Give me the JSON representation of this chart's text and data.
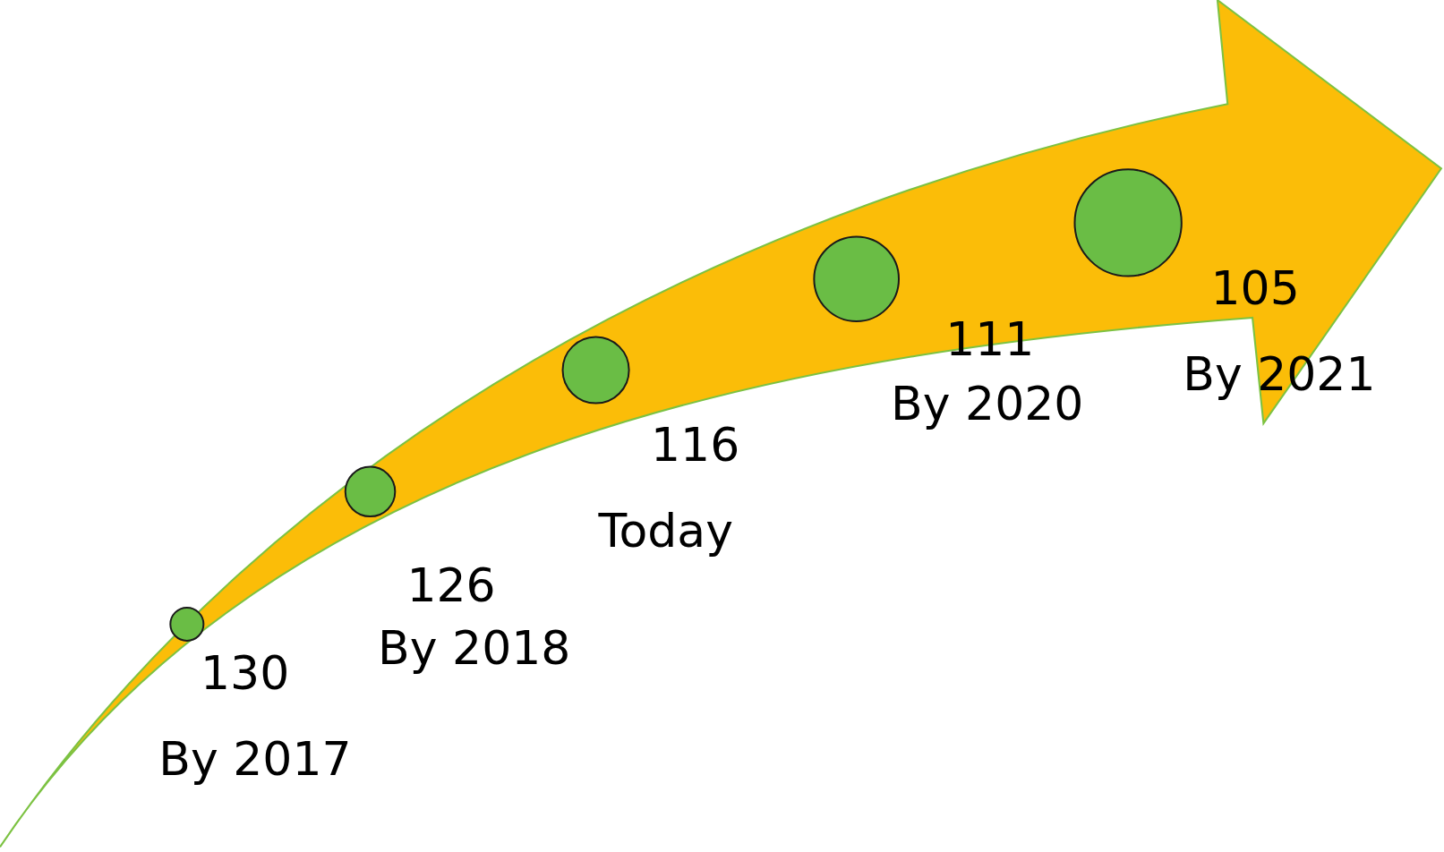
{
  "chart_data": {
    "type": "other",
    "categories": [
      "By 2017",
      "By 2018",
      "Today",
      "By 2020",
      "By 2021"
    ],
    "values": [
      130,
      126,
      116,
      111,
      105
    ],
    "data_labels": true,
    "color": "#6abd45"
  }
}
